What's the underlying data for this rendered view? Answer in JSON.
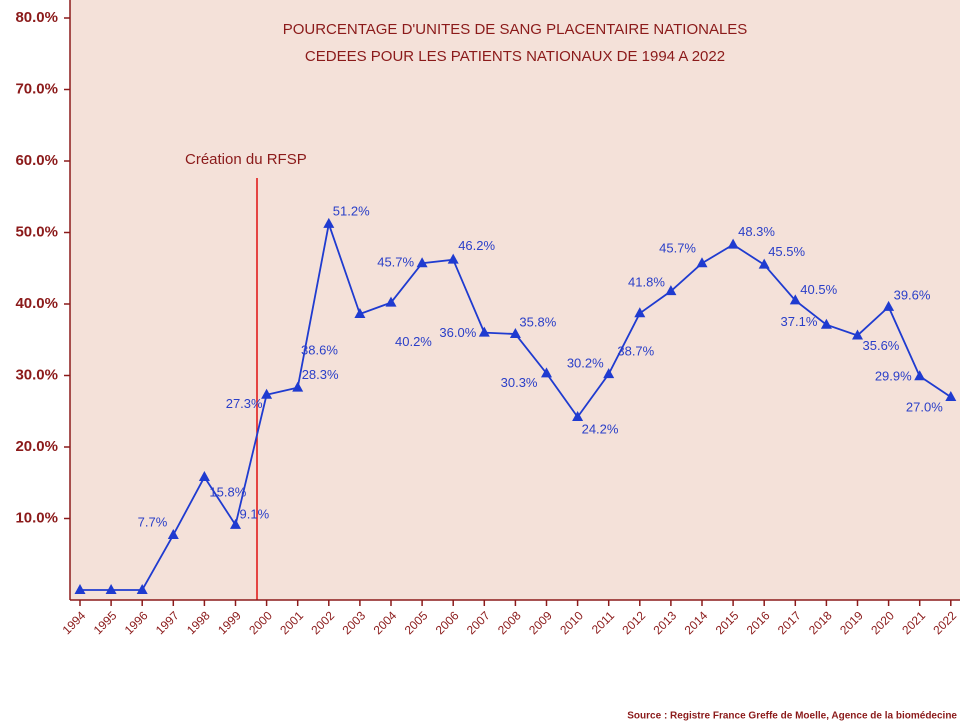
{
  "chart_data": {
    "type": "line",
    "title": [
      "POURCENTAGE D'UNITES DE SANG PLACENTAIRE NATIONALES",
      "CEDEES POUR LES PATIENTS NATIONAUX DE 1994 A 2022"
    ],
    "categories": [
      "1994",
      "1995",
      "1996",
      "1997",
      "1998",
      "1999",
      "2000",
      "2001",
      "2002",
      "2003",
      "2004",
      "2005",
      "2006",
      "2007",
      "2008",
      "2009",
      "2010",
      "2011",
      "2012",
      "2013",
      "2014",
      "2015",
      "2016",
      "2017",
      "2018",
      "2019",
      "2020",
      "2021",
      "2022"
    ],
    "series": [
      {
        "color": "#1f3bd0",
        "values": [
          0,
          0,
          0,
          7.7,
          15.8,
          9.1,
          27.3,
          28.3,
          51.2,
          38.6,
          40.2,
          45.7,
          46.2,
          36.0,
          35.8,
          30.3,
          24.2,
          30.2,
          38.7,
          41.8,
          45.7,
          48.3,
          45.5,
          40.5,
          37.1,
          35.6,
          39.6,
          29.9,
          27.0
        ],
        "value_labels": [
          null,
          null,
          null,
          "7.7%",
          "15.8%",
          "9.1%",
          "27.3%",
          "28.3%",
          "51.2%",
          "38.6%",
          "40.2%",
          "45.7%",
          "46.2%",
          "36.0%",
          "35.8%",
          "30.3%",
          "24.2%",
          "30.2%",
          "38.7%",
          "41.8%",
          "45.7%",
          "48.3%",
          "45.5%",
          "40.5%",
          "37.1%",
          "35.6%",
          "39.6%",
          "29.9%",
          "27.0%"
        ]
      }
    ],
    "ylim": [
      0,
      80
    ],
    "yticks": [
      {
        "value": 10,
        "label": "10.0%"
      },
      {
        "value": 20,
        "label": "20.0%"
      },
      {
        "value": 30,
        "label": "30.0%"
      },
      {
        "value": 40,
        "label": "40.0%"
      },
      {
        "value": 50,
        "label": "50.0%"
      },
      {
        "value": 60,
        "label": "60.0%"
      },
      {
        "value": 70,
        "label": "70.0%"
      },
      {
        "value": 80,
        "label": "80.0%"
      }
    ],
    "annotation": "Création du RFSP",
    "source": "Source : Registre France Greffe de Moelle, Agence de la biomédecine"
  }
}
